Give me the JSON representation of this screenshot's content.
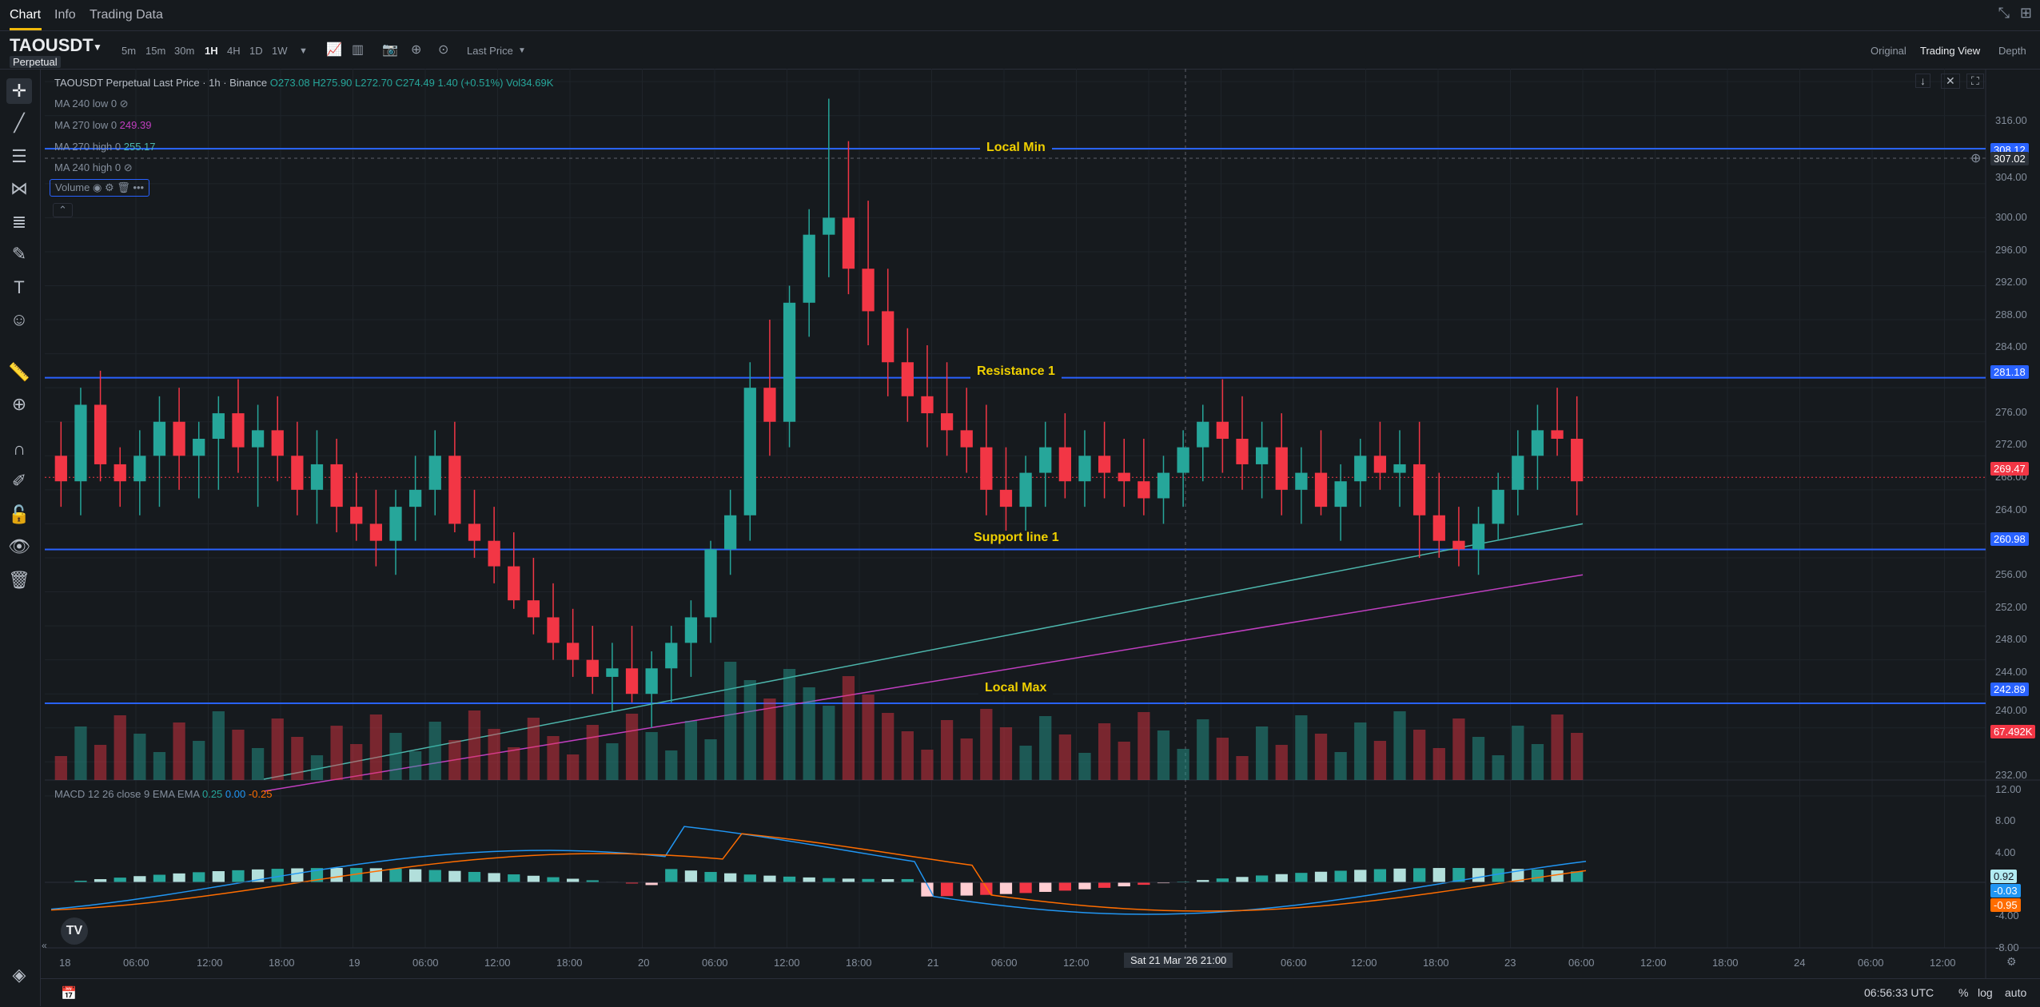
{
  "topbar": {
    "tabs": [
      "Chart",
      "Info",
      "Trading Data"
    ],
    "minimize_icon": "collapse-arrows-icon",
    "layout_icon": "grid-layout-icon"
  },
  "symbol_bar": {
    "symbol": "TAOUSDT",
    "badge": "Perpetual",
    "intervals": [
      "5m",
      "15m",
      "30m",
      "1H",
      "4H",
      "1D",
      "1W"
    ],
    "active_interval": "1H",
    "price_type": "Last Price",
    "views": [
      "Original",
      "Trading View",
      "Depth"
    ],
    "active_view": "Trading View"
  },
  "legend": {
    "title": "TAOUSDT Perpetual Last Price · 1h · Binance",
    "open": "O273.08",
    "high": "H275.90",
    "low": "L272.70",
    "close": "C274.49",
    "change": "1.40 (+0.51%)",
    "vol": "Vol34.69K",
    "ma1_label": "MA 240 low 0",
    "ma2_label": "MA 270 low 0",
    "ma2_value": "249.39",
    "ma3_label": "MA 270 high 0",
    "ma3_value": "255.17",
    "ma4_label": "MA 240 high 0",
    "volume_label": "Volume",
    "macd_label": "MACD 12 26 close 9 EMA EMA",
    "macd_v1": "0.25",
    "macd_v2": "0.00",
    "macd_v3": "-0.25"
  },
  "horizontal_lines": {
    "local_min": "Local Min",
    "resistance": "Resistance 1",
    "support": "Support line 1",
    "local_max": "Local Max"
  },
  "price_axis": {
    "ticks": [
      "316.00",
      "312.00",
      "304.00",
      "300.00",
      "296.00",
      "292.00",
      "288.00",
      "284.00",
      "280.00",
      "276.00",
      "272.00",
      "268.00",
      "264.00",
      "256.00",
      "252.00",
      "248.00",
      "244.00",
      "240.00",
      "236.00",
      "232.00"
    ],
    "pills": {
      "local_min": "308.12",
      "crosshair": "307.02",
      "resistance": "281.18",
      "last": "269.47",
      "support": "260.98",
      "local_max": "242.89",
      "volume": "67.492K"
    }
  },
  "macd_axis": {
    "ticks": [
      "12.00",
      "8.00",
      "4.00",
      "-4.00",
      "-8.00"
    ],
    "pills": {
      "hist": "0.92",
      "macd": "-0.03",
      "signal": "-0.95"
    }
  },
  "time_axis": {
    "ticks": [
      "18",
      "06:00",
      "12:00",
      "18:00",
      "19",
      "06:00",
      "12:00",
      "18:00",
      "20",
      "06:00",
      "12:00",
      "18:00",
      "21",
      "06:00",
      "12:00",
      "06:00",
      "12:00",
      "18:00",
      "23",
      "06:00",
      "12:00",
      "18:00",
      "24",
      "06:00",
      "12:00"
    ],
    "crosshair_label": "Sat 21 Mar '26   21:00"
  },
  "footer": {
    "clock": "06:56:33 UTC",
    "percent": "%",
    "log": "log",
    "auto": "auto"
  },
  "colors": {
    "up": "#26a69a",
    "down": "#f23645",
    "hline": "#2962ff",
    "ma_teal": "#4db6ac",
    "ma_purple": "#c03fc0",
    "macd_line": "#2196f3",
    "signal_line": "#ff6d00",
    "label_yellow": "#f0d000"
  },
  "chart_data": {
    "type": "candlestick",
    "interval": "1h",
    "price_range": [
      230,
      318
    ],
    "x_range": [
      "2026-03-18 00:00",
      "2026-03-24 18:00"
    ],
    "ohlc": [
      [
        272,
        276,
        266,
        269
      ],
      [
        269,
        280,
        265,
        278
      ],
      [
        278,
        282,
        269,
        271
      ],
      [
        271,
        273,
        266,
        269
      ],
      [
        269,
        275,
        265,
        272
      ],
      [
        272,
        279,
        266,
        276
      ],
      [
        276,
        280,
        268,
        272
      ],
      [
        272,
        276,
        267,
        274
      ],
      [
        274,
        279,
        268,
        277
      ],
      [
        277,
        281,
        270,
        273
      ],
      [
        273,
        278,
        266,
        275
      ],
      [
        275,
        279,
        269,
        272
      ],
      [
        272,
        276,
        265,
        268
      ],
      [
        268,
        275,
        264,
        271
      ],
      [
        271,
        274,
        263,
        266
      ],
      [
        266,
        270,
        262,
        264
      ],
      [
        264,
        268,
        259,
        262
      ],
      [
        262,
        268,
        258,
        266
      ],
      [
        266,
        272,
        262,
        268
      ],
      [
        268,
        275,
        265,
        272
      ],
      [
        272,
        276,
        263,
        264
      ],
      [
        264,
        268,
        260,
        262
      ],
      [
        262,
        266,
        257,
        259
      ],
      [
        259,
        263,
        254,
        255
      ],
      [
        255,
        260,
        251,
        253
      ],
      [
        253,
        257,
        248,
        250
      ],
      [
        250,
        254,
        246,
        248
      ],
      [
        248,
        252,
        244,
        246
      ],
      [
        246,
        250,
        242,
        247
      ],
      [
        247,
        252,
        243,
        244
      ],
      [
        244,
        249,
        240,
        247
      ],
      [
        247,
        252,
        243,
        250
      ],
      [
        250,
        255,
        246,
        253
      ],
      [
        253,
        262,
        250,
        261
      ],
      [
        261,
        268,
        258,
        265
      ],
      [
        265,
        283,
        262,
        280
      ],
      [
        280,
        288,
        272,
        276
      ],
      [
        276,
        292,
        273,
        290
      ],
      [
        290,
        301,
        286,
        298
      ],
      [
        298,
        314,
        293,
        300
      ],
      [
        300,
        309,
        291,
        294
      ],
      [
        294,
        302,
        285,
        289
      ],
      [
        289,
        294,
        279,
        283
      ],
      [
        283,
        287,
        276,
        279
      ],
      [
        279,
        285,
        273,
        277
      ],
      [
        277,
        283,
        272,
        275
      ],
      [
        275,
        280,
        270,
        273
      ],
      [
        273,
        278,
        265,
        268
      ],
      [
        268,
        273,
        262,
        266
      ],
      [
        266,
        272,
        263,
        270
      ],
      [
        270,
        276,
        266,
        273
      ],
      [
        273,
        277,
        267,
        269
      ],
      [
        269,
        275,
        266,
        272
      ],
      [
        272,
        276,
        267,
        270
      ],
      [
        270,
        274,
        266,
        269
      ],
      [
        269,
        274,
        265,
        267
      ],
      [
        267,
        272,
        264,
        270
      ],
      [
        270,
        275,
        266,
        273
      ],
      [
        273,
        278,
        269,
        276
      ],
      [
        276,
        281,
        270,
        274
      ],
      [
        274,
        279,
        268,
        271
      ],
      [
        271,
        276,
        267,
        273
      ],
      [
        273,
        277,
        265,
        268
      ],
      [
        268,
        273,
        264,
        270
      ],
      [
        270,
        275,
        265,
        266
      ],
      [
        266,
        271,
        262,
        269
      ],
      [
        269,
        274,
        266,
        272
      ],
      [
        272,
        276,
        268,
        270
      ],
      [
        270,
        275,
        266,
        271
      ],
      [
        271,
        276,
        260,
        265
      ],
      [
        265,
        270,
        260,
        262
      ],
      [
        262,
        266,
        259,
        261
      ],
      [
        261,
        266,
        258,
        264
      ],
      [
        264,
        270,
        262,
        268
      ],
      [
        268,
        275,
        265,
        272
      ],
      [
        272,
        278,
        268,
        275
      ],
      [
        275,
        280,
        272,
        274
      ],
      [
        274,
        279,
        265,
        269
      ]
    ],
    "horizontal_levels": {
      "Local Min": 308.12,
      "Resistance 1": 281.18,
      "Support line 1": 260.98,
      "Local Max": 242.89
    },
    "last_price": 269.47
  }
}
